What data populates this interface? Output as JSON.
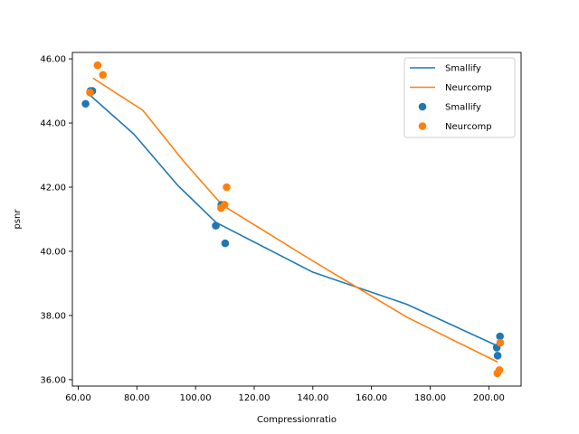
{
  "chart_data": {
    "type": "line",
    "xlabel": "Compressionratio",
    "ylabel": "psnr",
    "xlim": [
      58,
      211
    ],
    "ylim": [
      35.8,
      46.2
    ],
    "xticks": [
      60,
      80,
      100,
      120,
      140,
      160,
      180,
      200
    ],
    "xtick_labels": [
      "60.00",
      "80.00",
      "100.00",
      "120.00",
      "140.00",
      "160.00",
      "180.00",
      "200.00"
    ],
    "yticks": [
      36,
      38,
      40,
      42,
      44,
      46
    ],
    "ytick_labels": [
      "36.00",
      "38.00",
      "40.00",
      "42.00",
      "44.00",
      "46.00"
    ],
    "grid": false,
    "legend_position": "top-right",
    "legend": [
      {
        "label": "Smallify",
        "kind": "line",
        "color": "#1f77b4"
      },
      {
        "label": "Neurcomp",
        "kind": "line",
        "color": "#ff7f0e"
      },
      {
        "label": "Smallify",
        "kind": "scatter",
        "color": "#1f77b4"
      },
      {
        "label": "Neurcomp",
        "kind": "scatter",
        "color": "#ff7f0e"
      }
    ],
    "series": [
      {
        "name": "Smallify",
        "kind": "line",
        "color": "#1f77b4",
        "points": [
          [
            63,
            44.95
          ],
          [
            79,
            43.65
          ],
          [
            94,
            42.05
          ],
          [
            107,
            40.9
          ],
          [
            140,
            39.35
          ],
          [
            172,
            38.35
          ],
          [
            203,
            37.05
          ]
        ]
      },
      {
        "name": "Neurcomp",
        "kind": "line",
        "color": "#ff7f0e",
        "points": [
          [
            65,
            45.4
          ],
          [
            82,
            44.4
          ],
          [
            96,
            42.8
          ],
          [
            109,
            41.45
          ],
          [
            140,
            39.7
          ],
          [
            172,
            37.95
          ],
          [
            203,
            36.55
          ]
        ]
      },
      {
        "name": "Smallify",
        "kind": "scatter",
        "color": "#1f77b4",
        "points": [
          [
            62.5,
            44.6
          ],
          [
            64.2,
            45.0
          ],
          [
            64.8,
            45.0
          ],
          [
            106.9,
            40.8
          ],
          [
            108.8,
            41.45
          ],
          [
            109.8,
            41.45
          ],
          [
            110.1,
            40.25
          ],
          [
            202.7,
            37.0
          ],
          [
            203.0,
            36.75
          ],
          [
            203.8,
            37.35
          ]
        ]
      },
      {
        "name": "Neurcomp",
        "kind": "scatter",
        "color": "#ff7f0e",
        "points": [
          [
            64.0,
            44.95
          ],
          [
            66.6,
            45.8
          ],
          [
            68.4,
            45.5
          ],
          [
            108.7,
            41.35
          ],
          [
            109.9,
            41.45
          ],
          [
            110.6,
            42.0
          ],
          [
            202.9,
            36.2
          ],
          [
            203.6,
            36.3
          ],
          [
            203.9,
            37.15
          ]
        ]
      }
    ]
  }
}
